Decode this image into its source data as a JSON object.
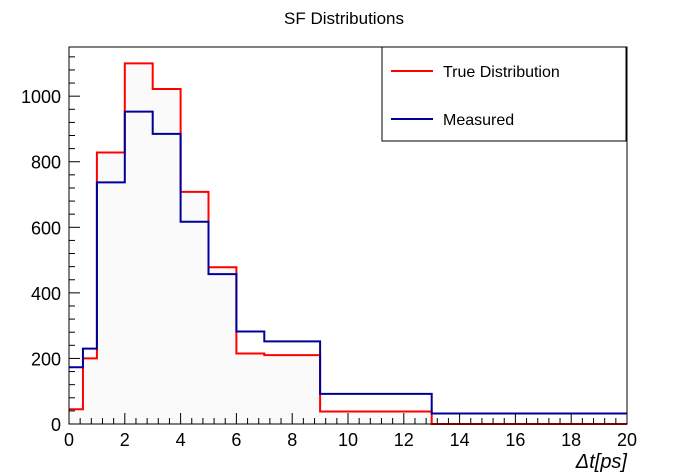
{
  "chart_data": {
    "type": "step",
    "title": "SF Distributions",
    "xlabel": "Δt[ps]",
    "ylabel": "",
    "xlim": [
      0,
      20
    ],
    "ylim": [
      0,
      1150
    ],
    "x_ticks": [
      0,
      2,
      4,
      6,
      8,
      10,
      12,
      14,
      16,
      18,
      20
    ],
    "y_ticks": [
      0,
      200,
      400,
      600,
      800,
      1000
    ],
    "bin_edges": [
      0,
      0.5,
      1,
      2,
      3,
      4,
      5,
      6,
      7,
      9,
      13,
      20
    ],
    "series": [
      {
        "name": "True Distribution",
        "color": "#ff0000",
        "values": [
          45,
          200,
          828,
          1100,
          1022,
          708,
          478,
          215,
          210,
          38,
          0
        ]
      },
      {
        "name": "Measured",
        "color": "#000099",
        "values": [
          173,
          230,
          737,
          953,
          885,
          617,
          457,
          282,
          252,
          92,
          32
        ]
      }
    ],
    "legend_position": "top-right",
    "grid": false
  }
}
